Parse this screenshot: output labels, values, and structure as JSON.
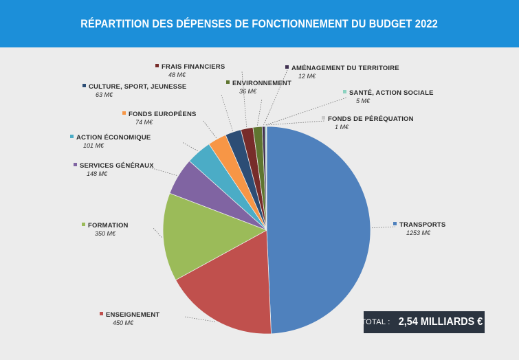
{
  "title": "RÉPARTITION DES DÉPENSES DE FONCTIONNEMENT DU BUDGET 2022",
  "total": {
    "label": "TOTAL :",
    "value": "2,54 MILLIARDS €"
  },
  "chart_data": {
    "type": "pie",
    "title": "RÉPARTITION DES DÉPENSES DE FONCTIONNEMENT DU BUDGET 2022",
    "unit": "M€",
    "slices": [
      {
        "name": "TRANSPORTS",
        "value": 1253,
        "value_label": "1253 M€",
        "color": "#4f81bd"
      },
      {
        "name": "ENSEIGNEMENT",
        "value": 450,
        "value_label": "450 M€",
        "color": "#c0504d"
      },
      {
        "name": "FORMATION",
        "value": 350,
        "value_label": "350 M€",
        "color": "#9bbb59"
      },
      {
        "name": "SERVICES GÉNÉRAUX",
        "value": 148,
        "value_label": "148 M€",
        "color": "#8064a2"
      },
      {
        "name": "ACTION ÉCONOMIQUE",
        "value": 101,
        "value_label": "101 M€",
        "color": "#4bacc6"
      },
      {
        "name": "FONDS EUROPÉENS",
        "value": 74,
        "value_label": "74 M€",
        "color": "#f79646"
      },
      {
        "name": "CULTURE, SPORT, JEUNESSE",
        "value": 63,
        "value_label": "63 M€",
        "color": "#2c4d75"
      },
      {
        "name": "FRAIS FINANCIERS",
        "value": 48,
        "value_label": "48 M€",
        "color": "#772c2a"
      },
      {
        "name": "ENVIRONNEMENT",
        "value": 36,
        "value_label": "36 M€",
        "color": "#5f7530"
      },
      {
        "name": "AMÉNAGEMENT DU TERRITOIRE",
        "value": 12,
        "value_label": "12 M€",
        "color": "#403151"
      },
      {
        "name": "SANTÉ, ACTION SOCIALE",
        "value": 5,
        "value_label": "5 M€",
        "color": "#8cd2c0"
      },
      {
        "name": "FONDS DE PÉRÉQUATION",
        "value": 1,
        "value_label": "1 M€",
        "color": "#c9c9c9"
      }
    ]
  }
}
